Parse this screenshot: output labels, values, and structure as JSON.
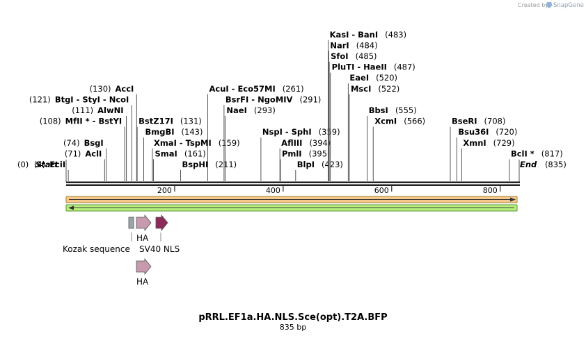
{
  "credit": {
    "prefix": "Created by",
    "brand": "SnapGene"
  },
  "map": {
    "length": 835,
    "start_label": "Start",
    "start_pos": "(0)",
    "end_label": "End",
    "end_pos": "(835)",
    "tick_labels": [
      "200",
      "400",
      "600",
      "800"
    ],
    "ticks": [
      200,
      400,
      600,
      800
    ]
  },
  "sites": [
    {
      "bp": 4,
      "row": 0,
      "col": "L",
      "name": "EciI",
      "pos": "(4)"
    },
    {
      "bp": 71,
      "row": 1,
      "col": "L",
      "name": "AclI",
      "pos": "(71)"
    },
    {
      "bp": 74,
      "row": 2,
      "col": "L",
      "name": "BsgI",
      "pos": "(74)"
    },
    {
      "bp": 108,
      "row": 4,
      "col": "L",
      "name": "MfII *  - BstYI",
      "pos": "(108)"
    },
    {
      "bp": 111,
      "row": 5,
      "col": "L",
      "name": "AlwNI",
      "pos": "(111)"
    },
    {
      "bp": 121,
      "row": 6,
      "col": "L",
      "name": "BtgI  - StyI  - NcoI",
      "pos": "(121)"
    },
    {
      "bp": 130,
      "row": 7,
      "col": "L",
      "name": "AccI",
      "pos": "(130)"
    },
    {
      "bp": 131,
      "row": 4,
      "col": "R",
      "name": "BstZ17I",
      "pos": "(131)"
    },
    {
      "bp": 143,
      "row": 3,
      "col": "R",
      "name": "BmgBI",
      "pos": "(143)"
    },
    {
      "bp": 159,
      "row": 2,
      "col": "R",
      "name": "XmaI  - TspMI",
      "pos": "(159)"
    },
    {
      "bp": 161,
      "row": 1,
      "col": "R",
      "name": "SmaI",
      "pos": "(161)"
    },
    {
      "bp": 211,
      "row": 0,
      "col": "R",
      "name": "BspHI",
      "pos": "(211)"
    },
    {
      "bp": 261,
      "row": 7,
      "col": "R",
      "name": "AcuI  - Eco57MI",
      "pos": "(261)"
    },
    {
      "bp": 291,
      "row": 6,
      "col": "R",
      "name": "BsrFI  - NgoMIV",
      "pos": "(291)"
    },
    {
      "bp": 293,
      "row": 5,
      "col": "R",
      "name": "NaeI",
      "pos": "(293)"
    },
    {
      "bp": 359,
      "row": 3,
      "col": "R",
      "name": "NspI  - SphI",
      "pos": "(359)"
    },
    {
      "bp": 394,
      "row": 2,
      "col": "R",
      "name": "AflIII",
      "pos": "(394)"
    },
    {
      "bp": 395,
      "row": 1,
      "col": "R",
      "name": "PmlI",
      "pos": "(395)"
    },
    {
      "bp": 423,
      "row": 0,
      "col": "R",
      "name": "BlpI",
      "pos": "(423)"
    },
    {
      "bp": 483,
      "row": 12,
      "col": "R",
      "name": "KasI  - BanI",
      "pos": "(483)"
    },
    {
      "bp": 484,
      "row": 11,
      "col": "R",
      "name": "NarI",
      "pos": "(484)"
    },
    {
      "bp": 485,
      "row": 10,
      "col": "R",
      "name": "SfoI",
      "pos": "(485)"
    },
    {
      "bp": 487,
      "row": 9,
      "col": "R",
      "name": "PluTI  - HaeII",
      "pos": "(487)"
    },
    {
      "bp": 520,
      "row": 8,
      "col": "R",
      "name": "EaeI",
      "pos": "(520)"
    },
    {
      "bp": 522,
      "row": 7,
      "col": "R",
      "name": "MscI",
      "pos": "(522)"
    },
    {
      "bp": 555,
      "row": 5,
      "col": "R",
      "name": "BbsI",
      "pos": "(555)"
    },
    {
      "bp": 566,
      "row": 4,
      "col": "R",
      "name": "XcmI",
      "pos": "(566)"
    },
    {
      "bp": 708,
      "row": 4,
      "col": "R",
      "name": "BseRI",
      "pos": "(708)"
    },
    {
      "bp": 720,
      "row": 3,
      "col": "R",
      "name": "Bsu36I",
      "pos": "(720)"
    },
    {
      "bp": 729,
      "row": 2,
      "col": "R",
      "name": "XmnI",
      "pos": "(729)"
    },
    {
      "bp": 817,
      "row": 1,
      "col": "R",
      "name": "BclI *",
      "pos": "(817)"
    }
  ],
  "features": [
    {
      "name": "Kozak sequence",
      "type": "box",
      "color": "#9aa4ab"
    },
    {
      "name": "HA",
      "type": "arrow",
      "color": "#c79aae"
    },
    {
      "name": "SV40 NLS",
      "type": "arrow",
      "color": "#8c2a5a"
    },
    {
      "name": "HA",
      "type": "arrow",
      "color": "#c79aae"
    }
  ],
  "colors": {
    "orf_fill": "#f6c98a",
    "orf_edge": "#a2803a",
    "orf2_fill": "#b9ef7e",
    "orf2_edge": "#55932d"
  },
  "plasmid": {
    "name": "pRRL.EF1a.HA.NLS.Sce(opt).T2A.BFP",
    "size": "835 bp"
  }
}
